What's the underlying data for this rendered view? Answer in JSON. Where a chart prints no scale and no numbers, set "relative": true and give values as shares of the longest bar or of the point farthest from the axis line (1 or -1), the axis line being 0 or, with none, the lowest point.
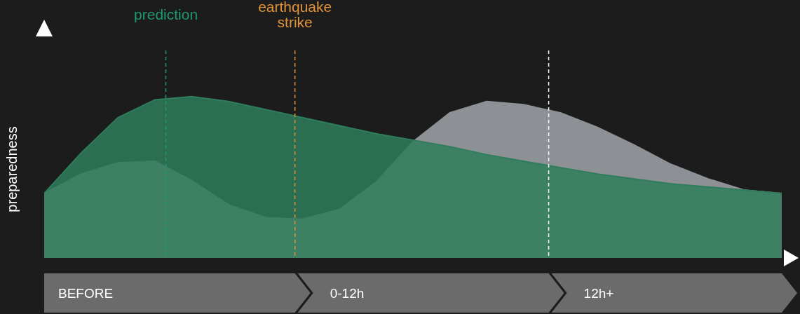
{
  "chart_data": {
    "type": "area",
    "relative": true,
    "ylabel": "preparedness",
    "categories": [
      null,
      null,
      null,
      null,
      null,
      null,
      null,
      null,
      null,
      null,
      null,
      null,
      null,
      null,
      null,
      null,
      null,
      null,
      null,
      null,
      null
    ],
    "series": [
      {
        "color": "#8d9196",
        "values": [
          0.4,
          0.52,
          0.59,
          0.6,
          0.48,
          0.33,
          0.25,
          0.24,
          0.3,
          0.47,
          0.72,
          0.9,
          0.97,
          0.95,
          0.9,
          0.81,
          0.7,
          0.58,
          0.49,
          0.42,
          0.4
        ]
      },
      {
        "color": "#2f7d5c",
        "values": [
          0.4,
          0.65,
          0.87,
          0.98,
          1,
          0.97,
          0.92,
          0.87,
          0.82,
          0.77,
          0.73,
          0.69,
          0.64,
          0.6,
          0.56,
          0.52,
          0.49,
          0.46,
          0.44,
          0.42,
          0.4
        ]
      }
    ],
    "annotations": [
      "prediction",
      "earthquake strike",
      "BEFORE",
      "0-12h",
      "12h+"
    ]
  }
}
